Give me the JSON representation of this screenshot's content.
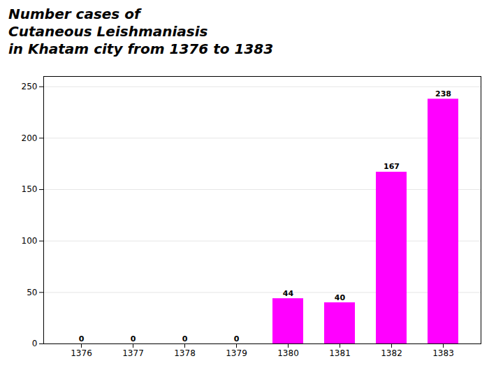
{
  "chart_data": {
    "type": "bar",
    "title": "Number cases of\nCutaneous Leishmaniasis\nin Khatam city from 1376 to 1383",
    "categories": [
      "1376",
      "1377",
      "1378",
      "1379",
      "1380",
      "1381",
      "1382",
      "1383"
    ],
    "values": [
      0,
      0,
      0,
      0,
      44,
      40,
      167,
      238
    ],
    "color": "#FF00FF",
    "ylim": [
      0,
      260
    ],
    "yticks": [
      0,
      50,
      100,
      150,
      200,
      250
    ],
    "grid": true,
    "data_labels": true
  }
}
